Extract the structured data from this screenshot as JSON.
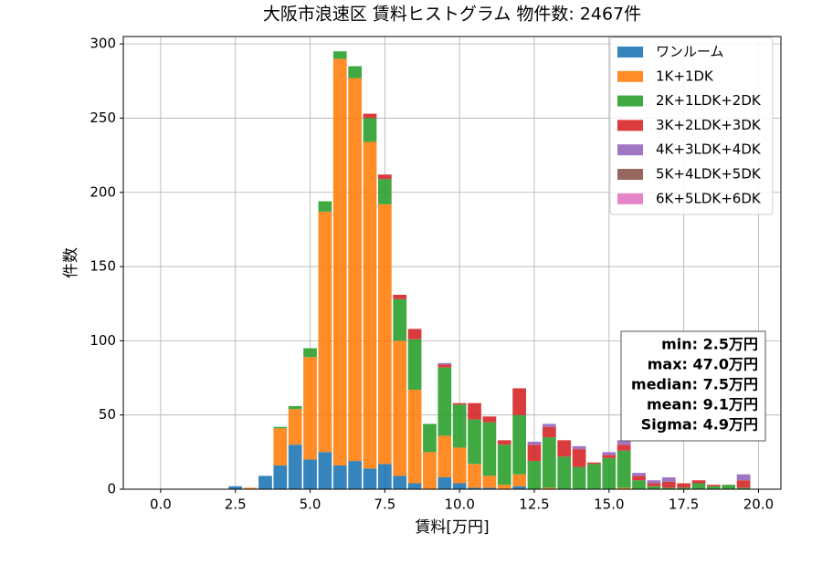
{
  "chart_data": {
    "type": "stacked_histogram",
    "title": "大阪市浪速区 賃料ヒストグラム  物件数: 2467件",
    "x_label": "賃料[万円]",
    "y_label": "件数",
    "bins": [
      -0.25,
      0.25,
      0.75,
      1.25,
      1.75,
      2.25,
      2.75,
      3.25,
      3.75,
      4.25,
      4.75,
      5.25,
      5.75,
      6.25,
      6.75,
      7.25,
      7.75,
      8.25,
      8.75,
      9.25,
      9.75,
      10.25,
      10.75,
      11.25,
      11.75,
      12.25,
      12.75,
      13.25,
      13.75,
      14.25,
      14.75,
      15.25,
      15.75,
      16.25,
      16.75,
      17.25,
      17.75,
      18.25,
      18.75,
      19.25,
      19.75
    ],
    "series": [
      {
        "name": "ワンルーム",
        "color": "#1f77b4",
        "values": [
          0,
          0,
          0,
          0,
          0,
          2,
          0,
          9,
          16,
          30,
          20,
          25,
          16,
          19,
          14,
          17,
          9,
          4,
          0,
          8,
          4,
          1,
          1,
          0,
          2,
          0,
          0,
          0,
          0,
          0,
          0,
          0,
          0,
          0,
          0,
          0,
          0,
          0,
          0,
          0
        ]
      },
      {
        "name": "1K+1DK",
        "color": "#ff7f0e",
        "values": [
          0,
          0,
          0,
          0,
          0,
          0,
          1,
          0,
          25,
          24,
          69,
          162,
          274,
          258,
          220,
          175,
          91,
          63,
          25,
          28,
          24,
          16,
          8,
          3,
          8,
          0,
          1,
          0,
          0,
          0,
          0,
          1,
          0,
          0,
          0,
          0,
          0,
          0,
          0,
          0
        ]
      },
      {
        "name": "2K+1LDK+2DK",
        "color": "#2ca02c",
        "values": [
          0,
          0,
          0,
          0,
          0,
          0,
          0,
          0,
          1,
          2,
          6,
          7,
          5,
          8,
          16,
          17,
          28,
          34,
          19,
          46,
          29,
          30,
          36,
          27,
          40,
          19,
          34,
          22,
          15,
          17,
          21,
          25,
          6,
          2,
          1,
          1,
          4,
          2,
          3,
          1
        ]
      },
      {
        "name": "3K+2LDK+3DK",
        "color": "#d62728",
        "values": [
          0,
          0,
          0,
          0,
          0,
          0,
          0,
          0,
          0,
          0,
          0,
          0,
          0,
          0,
          3,
          3,
          3,
          7,
          0,
          2,
          1,
          11,
          4,
          3,
          18,
          11,
          7,
          11,
          12,
          1,
          2,
          4,
          3,
          2,
          4,
          3,
          2,
          1,
          0,
          5
        ]
      },
      {
        "name": "4K+3LDK+4DK",
        "color": "#9467bd",
        "values": [
          0,
          0,
          0,
          0,
          0,
          0,
          0,
          0,
          0,
          0,
          0,
          0,
          0,
          0,
          0,
          0,
          0,
          0,
          0,
          1,
          0,
          0,
          0,
          0,
          0,
          2,
          2,
          0,
          2,
          0,
          2,
          3,
          2,
          2,
          3,
          0,
          0,
          0,
          0,
          4
        ]
      },
      {
        "name": "5K+4LDK+5DK",
        "color": "#8c564b",
        "values": [
          0,
          0,
          0,
          0,
          0,
          0,
          0,
          0,
          0,
          0,
          0,
          0,
          0,
          0,
          0,
          0,
          0,
          0,
          0,
          0,
          0,
          0,
          0,
          0,
          0,
          0,
          0,
          0,
          0,
          0,
          0,
          0,
          0,
          0,
          0,
          0,
          0,
          0,
          0,
          0
        ]
      },
      {
        "name": "6K+5LDK+6DK",
        "color": "#e377c2",
        "values": [
          0,
          0,
          0,
          0,
          0,
          0,
          0,
          0,
          0,
          0,
          0,
          0,
          0,
          0,
          0,
          0,
          0,
          0,
          0,
          0,
          0,
          0,
          0,
          0,
          0,
          0,
          0,
          0,
          0,
          0,
          0,
          0,
          0,
          0,
          0,
          0,
          0,
          0,
          0,
          0
        ]
      }
    ],
    "xlim": [
      -1.25,
      20.75
    ],
    "ylim": [
      0,
      305
    ],
    "xticks": [
      {
        "value": 0,
        "label": "0.0"
      },
      {
        "value": 2.5,
        "label": "2.5"
      },
      {
        "value": 5,
        "label": "5.0"
      },
      {
        "value": 7.5,
        "label": "7.5"
      },
      {
        "value": 10,
        "label": "10.0"
      },
      {
        "value": 12.5,
        "label": "12.5"
      },
      {
        "value": 15,
        "label": "15.0"
      },
      {
        "value": 17.5,
        "label": "17.5"
      },
      {
        "value": 20,
        "label": "20.0"
      }
    ],
    "yticks": [
      0,
      50,
      100,
      150,
      200,
      250,
      300
    ],
    "grid": true,
    "legend": "upper-right",
    "annotations": [
      "min: 2.5万円",
      "max: 47.0万円",
      "median: 7.5万円",
      "mean: 9.1万円",
      "Sigma: 4.9万円"
    ]
  }
}
